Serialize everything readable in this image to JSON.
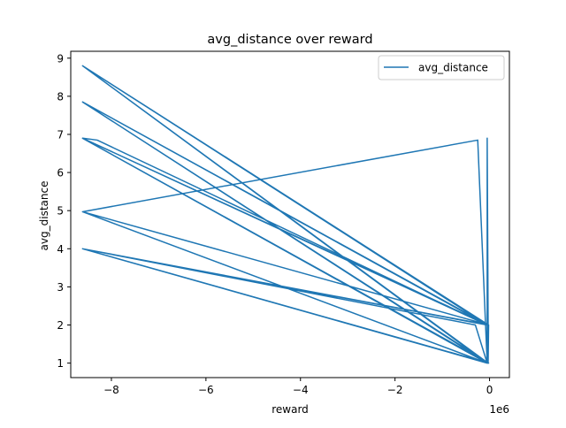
{
  "chart_data": {
    "type": "line",
    "title": "avg_distance over reward",
    "xlabel": "reward",
    "ylabel": "avg_distance",
    "x_offset_label": "1e6",
    "xlim": [
      -8.86,
      0.42
    ],
    "ylim": [
      0.62,
      9.18
    ],
    "x_ticks": [
      -8,
      -6,
      -4,
      -2,
      0
    ],
    "x_tick_labels": [
      "−8",
      "−6",
      "−4",
      "−2",
      "0"
    ],
    "y_ticks": [
      1,
      2,
      3,
      4,
      5,
      6,
      7,
      8,
      9
    ],
    "y_tick_labels": [
      "1",
      "2",
      "3",
      "4",
      "5",
      "6",
      "7",
      "8",
      "9"
    ],
    "grid": false,
    "legend_position": "upper right",
    "series": [
      {
        "name": "avg_distance",
        "color": "#1f77b4",
        "x": [
          -8.61,
          -0.05,
          -8.61,
          -0.03,
          -8.61,
          -0.05,
          -8.61,
          -0.02,
          -8.61,
          -0.05,
          -8.61,
          -0.03,
          -8.61,
          -0.05,
          -8.61,
          -0.02,
          -8.61,
          -0.05,
          -8.61,
          -0.02,
          -8.61,
          -0.05,
          -8.61,
          -0.25,
          -0.05,
          -0.05,
          -0.03,
          -8.61,
          -8.3,
          -0.05,
          -8.61,
          -0.3,
          -0.05,
          -0.02,
          -0.03,
          -0.05,
          -0.04,
          -0.03,
          -0.05,
          -0.02,
          -0.04,
          -0.03,
          -0.05,
          -0.02
        ],
        "y": [
          8.8,
          2.0,
          7.85,
          1.0,
          8.8,
          2.0,
          6.9,
          1.0,
          4.0,
          1.0,
          7.85,
          2.0,
          4.0,
          1.0,
          8.8,
          2.0,
          4.97,
          1.0,
          6.9,
          2.0,
          4.0,
          1.0,
          4.97,
          6.85,
          1.0,
          6.9,
          2.0,
          6.9,
          6.85,
          2.0,
          4.0,
          2.0,
          1.0,
          2.0,
          1.0,
          2.0,
          1.0,
          2.0,
          1.0,
          2.0,
          1.0,
          2.0,
          1.0,
          2.0
        ]
      }
    ]
  }
}
